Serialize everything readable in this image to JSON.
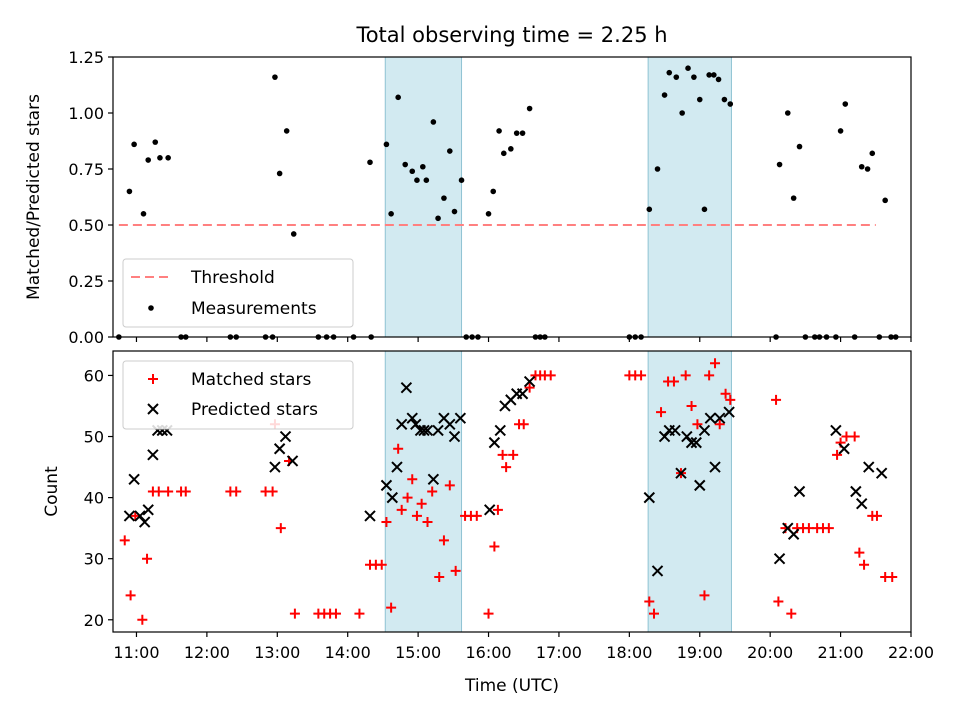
{
  "figure": {
    "title": "Total observing time = 2.25 h"
  },
  "chart_data": [
    {
      "type": "scatter",
      "panel": "top",
      "ylabel": "Matched/Predicted stars",
      "xlabel": "",
      "xlim": [
        "10:40",
        "22:00"
      ],
      "ylim": [
        0,
        1.25
      ],
      "yticks": [
        0.0,
        0.25,
        0.5,
        0.75,
        1.0,
        1.25
      ],
      "ytick_labels": [
        "0.00",
        "0.25",
        "0.50",
        "0.75",
        "1.00",
        "1.25"
      ],
      "xticks": [
        "11:00",
        "12:00",
        "13:00",
        "14:00",
        "15:00",
        "16:00",
        "17:00",
        "18:00",
        "19:00",
        "20:00",
        "21:00",
        "22:00"
      ],
      "x_tick_labels_visible": false,
      "legend_position": "lower left",
      "legend": [
        "Threshold",
        "Measurements"
      ],
      "shaded_intervals": [
        [
          "14:32",
          "15:37"
        ],
        [
          "18:16",
          "19:27"
        ]
      ],
      "shade_color": "#add8e6",
      "threshold": {
        "name": "Threshold",
        "y": 0.5,
        "x_range": [
          "10:45",
          "21:30"
        ],
        "color": "#ff8080",
        "style": "dashed"
      },
      "series": [
        {
          "name": "Measurements",
          "color": "#000000",
          "marker": "dot",
          "points": [
            [
              "10:45",
              0.0
            ],
            [
              "10:54",
              0.65
            ],
            [
              "10:58",
              0.86
            ],
            [
              "11:06",
              0.55
            ],
            [
              "11:10",
              0.79
            ],
            [
              "11:16",
              0.87
            ],
            [
              "11:20",
              0.8
            ],
            [
              "11:27",
              0.8
            ],
            [
              "11:38",
              0.0
            ],
            [
              "11:42",
              0.0
            ],
            [
              "12:20",
              0.0
            ],
            [
              "12:25",
              0.0
            ],
            [
              "12:50",
              0.0
            ],
            [
              "12:56",
              0.0
            ],
            [
              "12:58",
              1.16
            ],
            [
              "13:02",
              0.73
            ],
            [
              "13:08",
              0.92
            ],
            [
              "13:14",
              0.46
            ],
            [
              "13:35",
              0.0
            ],
            [
              "13:42",
              0.0
            ],
            [
              "13:48",
              0.0
            ],
            [
              "14:05",
              0.0
            ],
            [
              "14:20",
              0.0
            ],
            [
              "14:19",
              0.78
            ],
            [
              "14:33",
              0.86
            ],
            [
              "14:37",
              0.55
            ],
            [
              "14:43",
              1.07
            ],
            [
              "14:49",
              0.77
            ],
            [
              "14:55",
              0.74
            ],
            [
              "14:59",
              0.7
            ],
            [
              "15:04",
              0.76
            ],
            [
              "15:07",
              0.7
            ],
            [
              "15:13",
              0.96
            ],
            [
              "15:17",
              0.53
            ],
            [
              "15:22",
              0.62
            ],
            [
              "15:27",
              0.83
            ],
            [
              "15:31",
              0.56
            ],
            [
              "15:37",
              0.7
            ],
            [
              "15:41",
              0.0
            ],
            [
              "15:46",
              0.0
            ],
            [
              "15:51",
              0.0
            ],
            [
              "16:00",
              0.55
            ],
            [
              "16:04",
              0.65
            ],
            [
              "16:09",
              0.92
            ],
            [
              "16:13",
              0.82
            ],
            [
              "16:19",
              0.84
            ],
            [
              "16:24",
              0.91
            ],
            [
              "16:29",
              0.91
            ],
            [
              "16:35",
              1.02
            ],
            [
              "16:40",
              0.0
            ],
            [
              "16:44",
              0.0
            ],
            [
              "16:48",
              0.0
            ],
            [
              "18:00",
              0.0
            ],
            [
              "18:05",
              0.0
            ],
            [
              "18:10",
              0.0
            ],
            [
              "18:17",
              0.57
            ],
            [
              "18:24",
              0.75
            ],
            [
              "18:30",
              1.08
            ],
            [
              "18:34",
              1.18
            ],
            [
              "18:40",
              1.16
            ],
            [
              "18:45",
              1.0
            ],
            [
              "18:50",
              1.2
            ],
            [
              "18:55",
              1.16
            ],
            [
              "19:00",
              1.06
            ],
            [
              "19:04",
              0.57
            ],
            [
              "19:08",
              1.17
            ],
            [
              "19:12",
              1.17
            ],
            [
              "19:16",
              1.15
            ],
            [
              "19:21",
              1.06
            ],
            [
              "19:26",
              1.04
            ],
            [
              "20:05",
              0.0
            ],
            [
              "20:08",
              0.77
            ],
            [
              "20:15",
              1.0
            ],
            [
              "20:20",
              0.62
            ],
            [
              "20:25",
              0.85
            ],
            [
              "20:30",
              0.0
            ],
            [
              "20:38",
              0.0
            ],
            [
              "20:42",
              0.0
            ],
            [
              "20:48",
              0.0
            ],
            [
              "20:56",
              0.0
            ],
            [
              "21:00",
              0.92
            ],
            [
              "21:04",
              1.04
            ],
            [
              "21:12",
              0.0
            ],
            [
              "21:18",
              0.76
            ],
            [
              "21:23",
              0.75
            ],
            [
              "21:27",
              0.82
            ],
            [
              "21:33",
              0.0
            ],
            [
              "21:38",
              0.61
            ],
            [
              "21:43",
              0.0
            ],
            [
              "21:47",
              0.0
            ]
          ]
        }
      ]
    },
    {
      "type": "scatter",
      "panel": "bottom",
      "ylabel": "Count",
      "xlabel": "Time (UTC)",
      "xlim": [
        "10:40",
        "22:00"
      ],
      "ylim": [
        18,
        64
      ],
      "yticks": [
        20,
        30,
        40,
        50,
        60
      ],
      "ytick_labels": [
        "20",
        "30",
        "40",
        "50",
        "60"
      ],
      "xticks": [
        "11:00",
        "12:00",
        "13:00",
        "14:00",
        "15:00",
        "16:00",
        "17:00",
        "18:00",
        "19:00",
        "20:00",
        "21:00",
        "22:00"
      ],
      "legend_position": "upper left",
      "legend": [
        "Matched stars",
        "Predicted stars"
      ],
      "shaded_intervals": [
        [
          "14:32",
          "15:37"
        ],
        [
          "18:16",
          "19:27"
        ]
      ],
      "shade_color": "#add8e6",
      "series": [
        {
          "name": "Matched stars",
          "color": "#ff0000",
          "marker": "plus",
          "points": [
            [
              "10:50",
              33
            ],
            [
              "10:55",
              24
            ],
            [
              "10:59",
              37
            ],
            [
              "11:05",
              20
            ],
            [
              "11:09",
              30
            ],
            [
              "11:14",
              41
            ],
            [
              "11:19",
              41
            ],
            [
              "11:27",
              41
            ],
            [
              "11:38",
              41
            ],
            [
              "11:42",
              41
            ],
            [
              "12:20",
              41
            ],
            [
              "12:25",
              41
            ],
            [
              "12:50",
              41
            ],
            [
              "12:56",
              41
            ],
            [
              "12:58",
              52
            ],
            [
              "13:03",
              35
            ],
            [
              "13:10",
              46
            ],
            [
              "13:15",
              21
            ],
            [
              "13:35",
              21
            ],
            [
              "13:40",
              21
            ],
            [
              "13:45",
              21
            ],
            [
              "13:50",
              21
            ],
            [
              "14:10",
              21
            ],
            [
              "14:19",
              29
            ],
            [
              "14:24",
              29
            ],
            [
              "14:29",
              29
            ],
            [
              "14:33",
              36
            ],
            [
              "14:37",
              22
            ],
            [
              "14:43",
              48
            ],
            [
              "14:46",
              38
            ],
            [
              "14:51",
              40
            ],
            [
              "14:55",
              43
            ],
            [
              "14:59",
              37
            ],
            [
              "15:03",
              39
            ],
            [
              "15:08",
              36
            ],
            [
              "15:12",
              41
            ],
            [
              "15:18",
              27
            ],
            [
              "15:22",
              33
            ],
            [
              "15:27",
              42
            ],
            [
              "15:32",
              28
            ],
            [
              "15:40",
              37
            ],
            [
              "15:45",
              37
            ],
            [
              "15:50",
              37
            ],
            [
              "16:00",
              21
            ],
            [
              "16:05",
              32
            ],
            [
              "16:08",
              38
            ],
            [
              "16:12",
              47
            ],
            [
              "16:15",
              45
            ],
            [
              "16:21",
              47
            ],
            [
              "16:26",
              52
            ],
            [
              "16:30",
              52
            ],
            [
              "16:35",
              58
            ],
            [
              "16:40",
              60
            ],
            [
              "16:44",
              60
            ],
            [
              "16:48",
              60
            ],
            [
              "16:53",
              60
            ],
            [
              "18:00",
              60
            ],
            [
              "18:05",
              60
            ],
            [
              "18:10",
              60
            ],
            [
              "18:17",
              23
            ],
            [
              "18:21",
              21
            ],
            [
              "18:27",
              54
            ],
            [
              "18:33",
              59
            ],
            [
              "18:38",
              59
            ],
            [
              "18:44",
              44
            ],
            [
              "18:48",
              60
            ],
            [
              "18:53",
              55
            ],
            [
              "18:58",
              52
            ],
            [
              "19:04",
              24
            ],
            [
              "19:08",
              60
            ],
            [
              "19:13",
              62
            ],
            [
              "19:17",
              52
            ],
            [
              "19:22",
              57
            ],
            [
              "19:26",
              56
            ],
            [
              "20:05",
              56
            ],
            [
              "20:07",
              23
            ],
            [
              "20:13",
              35
            ],
            [
              "20:18",
              21
            ],
            [
              "20:23",
              35
            ],
            [
              "20:28",
              35
            ],
            [
              "20:33",
              35
            ],
            [
              "20:40",
              35
            ],
            [
              "20:45",
              35
            ],
            [
              "20:50",
              35
            ],
            [
              "20:57",
              47
            ],
            [
              "21:00",
              49
            ],
            [
              "21:05",
              50
            ],
            [
              "21:12",
              50
            ],
            [
              "21:16",
              31
            ],
            [
              "21:20",
              29
            ],
            [
              "21:27",
              37
            ],
            [
              "21:31",
              37
            ],
            [
              "21:38",
              27
            ],
            [
              "21:44",
              27
            ]
          ]
        },
        {
          "name": "Predicted stars",
          "color": "#000000",
          "marker": "x",
          "points": [
            [
              "10:54",
              37
            ],
            [
              "10:58",
              43
            ],
            [
              "11:03",
              37
            ],
            [
              "11:07",
              36
            ],
            [
              "11:10",
              38
            ],
            [
              "11:14",
              47
            ],
            [
              "11:18",
              51
            ],
            [
              "11:22",
              51
            ],
            [
              "11:26",
              51
            ],
            [
              "12:58",
              45
            ],
            [
              "13:02",
              48
            ],
            [
              "13:07",
              50
            ],
            [
              "13:13",
              46
            ],
            [
              "14:19",
              37
            ],
            [
              "14:33",
              42
            ],
            [
              "14:38",
              40
            ],
            [
              "14:42",
              45
            ],
            [
              "14:46",
              52
            ],
            [
              "14:50",
              58
            ],
            [
              "14:55",
              53
            ],
            [
              "14:58",
              52
            ],
            [
              "15:02",
              51
            ],
            [
              "15:05",
              51
            ],
            [
              "15:08",
              51
            ],
            [
              "15:13",
              43
            ],
            [
              "15:17",
              51
            ],
            [
              "15:22",
              53
            ],
            [
              "15:27",
              52
            ],
            [
              "15:31",
              50
            ],
            [
              "15:36",
              53
            ],
            [
              "16:01",
              38
            ],
            [
              "16:05",
              49
            ],
            [
              "16:10",
              51
            ],
            [
              "16:14",
              55
            ],
            [
              "16:19",
              56
            ],
            [
              "16:24",
              57
            ],
            [
              "16:29",
              57
            ],
            [
              "16:35",
              59
            ],
            [
              "18:17",
              40
            ],
            [
              "18:24",
              28
            ],
            [
              "18:30",
              50
            ],
            [
              "18:34",
              51
            ],
            [
              "18:39",
              51
            ],
            [
              "18:44",
              44
            ],
            [
              "18:49",
              50
            ],
            [
              "18:53",
              49
            ],
            [
              "18:57",
              49
            ],
            [
              "19:00",
              42
            ],
            [
              "19:04",
              51
            ],
            [
              "19:09",
              53
            ],
            [
              "19:13",
              45
            ],
            [
              "19:17",
              53
            ],
            [
              "19:25",
              54
            ],
            [
              "20:08",
              30
            ],
            [
              "20:15",
              35
            ],
            [
              "20:20",
              34
            ],
            [
              "20:25",
              41
            ],
            [
              "20:56",
              51
            ],
            [
              "21:03",
              48
            ],
            [
              "21:13",
              41
            ],
            [
              "21:18",
              39
            ],
            [
              "21:24",
              45
            ],
            [
              "21:35",
              44
            ]
          ]
        }
      ]
    }
  ]
}
